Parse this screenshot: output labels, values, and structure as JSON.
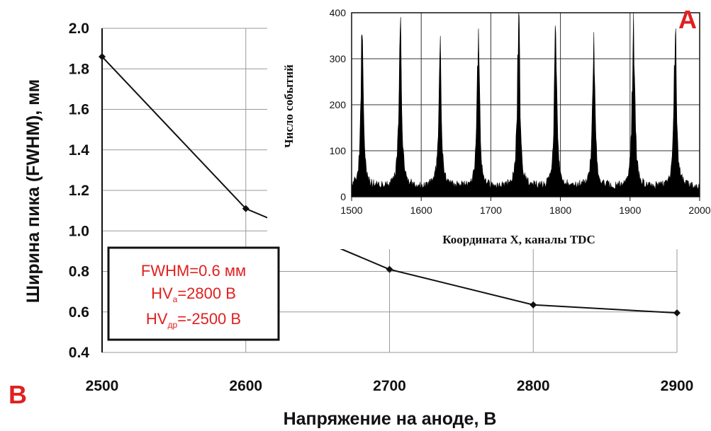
{
  "panel_labels": {
    "main": "B",
    "inset": "A"
  },
  "chart_data": [
    {
      "id": "main",
      "type": "line",
      "title": "",
      "xlabel": "Напряжение на аноде, В",
      "ylabel": "Ширина пика (FWHM), мм",
      "xlim": [
        2500,
        2900
      ],
      "ylim": [
        0.4,
        2.0
      ],
      "x_ticks": [
        2500,
        2600,
        2700,
        2800,
        2900
      ],
      "y_ticks": [
        "0.4",
        "0.6",
        "0.8",
        "1.0",
        "1.2",
        "1.4",
        "1.6",
        "1.8",
        "2.0"
      ],
      "grid": true,
      "x": [
        2500,
        2600,
        2700,
        2800,
        2900
      ],
      "y": [
        1.86,
        1.11,
        0.81,
        0.635,
        0.595
      ],
      "annotation": {
        "line1": "FWHM=0.6 мм",
        "line2_main": "HV",
        "line2_sub": "a",
        "line2_rest": "=2800 В",
        "line3_main": "HV",
        "line3_sub": "др",
        "line3_rest": "=-2500 В"
      }
    },
    {
      "id": "inset",
      "type": "histogram",
      "title": "",
      "xlabel": "Координата X, каналы TDC",
      "ylabel": "Число событий",
      "xlim": [
        1500,
        2000
      ],
      "ylim": [
        0,
        400
      ],
      "x_ticks": [
        1500,
        1600,
        1700,
        1800,
        1900,
        2000
      ],
      "y_ticks": [
        0,
        100,
        200,
        300,
        400
      ],
      "grid": true,
      "peaks": [
        {
          "x": 1515,
          "height": 370
        },
        {
          "x": 1570,
          "height": 390
        },
        {
          "x": 1627,
          "height": 340
        },
        {
          "x": 1682,
          "height": 375
        },
        {
          "x": 1740,
          "height": 395
        },
        {
          "x": 1793,
          "height": 380
        },
        {
          "x": 1848,
          "height": 370
        },
        {
          "x": 1905,
          "height": 390
        },
        {
          "x": 1965,
          "height": 370
        }
      ],
      "baseline": 20
    }
  ]
}
